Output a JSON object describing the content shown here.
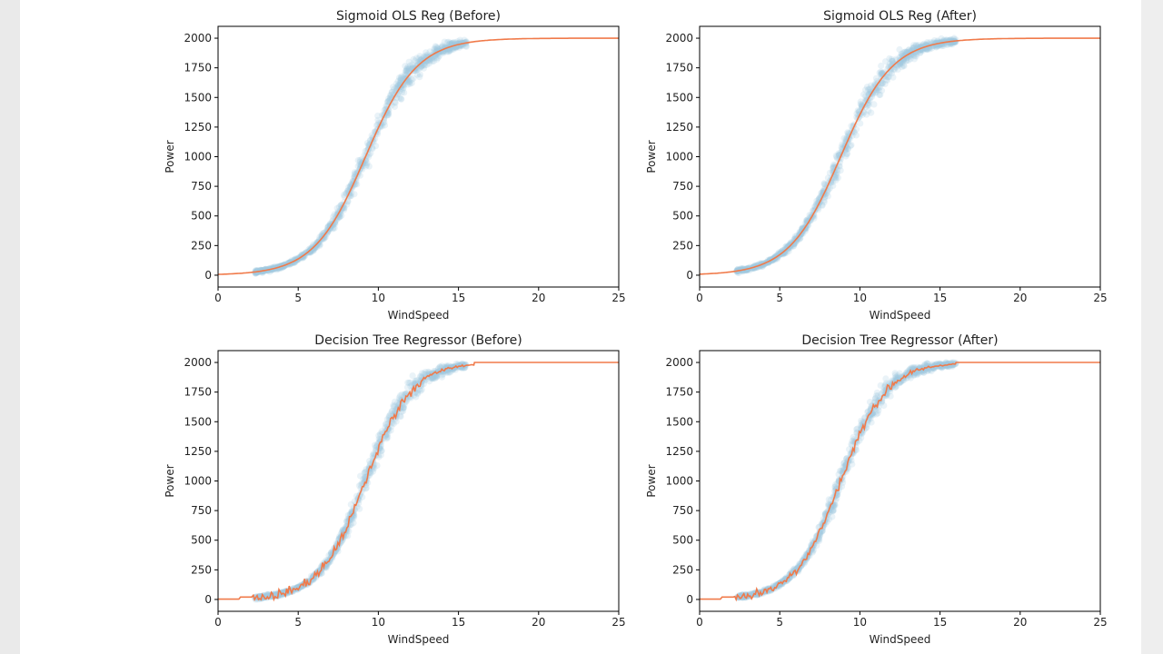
{
  "colors": {
    "scatter": "#9ecae1",
    "fit_line": "#f07a4a",
    "axes": "#000000",
    "background": "#ffffff",
    "page_margin": "#eaeaea"
  },
  "chart_data": [
    {
      "type": "scatter",
      "title": "Sigmoid OLS Reg (Before)",
      "xlabel": "WindSpeed",
      "ylabel": "Power",
      "xlim": [
        0,
        25
      ],
      "ylim": [
        -100,
        2100
      ],
      "xticks": [
        0,
        5,
        10,
        15,
        20,
        25
      ],
      "yticks": [
        0,
        250,
        500,
        750,
        1000,
        1250,
        1500,
        1750,
        2000
      ],
      "grid": false,
      "series": [
        {
          "kind": "scatter",
          "center_curve": {
            "x0": 9.2,
            "k": 0.62,
            "max": 2000
          },
          "x_range": [
            2.3,
            15.5
          ],
          "spread": 70
        },
        {
          "kind": "line",
          "style": "smooth",
          "curve": {
            "x0": 9.2,
            "k": 0.62,
            "max": 2000
          }
        }
      ]
    },
    {
      "type": "scatter",
      "title": "Sigmoid OLS Reg (After)",
      "xlabel": "WindSpeed",
      "ylabel": "Power",
      "xlim": [
        0,
        25
      ],
      "ylim": [
        -100,
        2100
      ],
      "xticks": [
        0,
        5,
        10,
        15,
        20,
        25
      ],
      "yticks": [
        0,
        250,
        500,
        750,
        1000,
        1250,
        1500,
        1750,
        2000
      ],
      "grid": false,
      "series": [
        {
          "kind": "scatter",
          "center_curve": {
            "x0": 8.8,
            "k": 0.62,
            "max": 2000
          },
          "x_range": [
            2.3,
            16
          ],
          "spread": 70
        },
        {
          "kind": "line",
          "style": "smooth",
          "curve": {
            "x0": 8.8,
            "k": 0.62,
            "max": 2000
          }
        }
      ]
    },
    {
      "type": "scatter",
      "title": "Decision Tree Regressor (Before)",
      "xlabel": "WindSpeed",
      "ylabel": "Power",
      "xlim": [
        0,
        25
      ],
      "ylim": [
        -100,
        2100
      ],
      "xticks": [
        0,
        5,
        10,
        15,
        20,
        25
      ],
      "yticks": [
        0,
        250,
        500,
        750,
        1000,
        1250,
        1500,
        1750,
        2000
      ],
      "grid": false,
      "series": [
        {
          "kind": "scatter",
          "center_curve": {
            "x0": 9.2,
            "k": 0.7,
            "max": 2000
          },
          "x_range": [
            2.3,
            15.5
          ],
          "spread": 70
        },
        {
          "kind": "line",
          "style": "step",
          "curve": {
            "x0": 9.2,
            "k": 0.7,
            "max": 2000
          }
        }
      ]
    },
    {
      "type": "scatter",
      "title": "Decision Tree Regressor (After)",
      "xlabel": "WindSpeed",
      "ylabel": "Power",
      "xlim": [
        0,
        25
      ],
      "ylim": [
        -100,
        2100
      ],
      "xticks": [
        0,
        5,
        10,
        15,
        20,
        25
      ],
      "yticks": [
        0,
        250,
        500,
        750,
        1000,
        1250,
        1500,
        1750,
        2000
      ],
      "grid": false,
      "series": [
        {
          "kind": "scatter",
          "center_curve": {
            "x0": 8.8,
            "k": 0.7,
            "max": 2000
          },
          "x_range": [
            2.3,
            16
          ],
          "spread": 70
        },
        {
          "kind": "line",
          "style": "step",
          "curve": {
            "x0": 8.8,
            "k": 0.7,
            "max": 2000
          }
        }
      ]
    }
  ]
}
